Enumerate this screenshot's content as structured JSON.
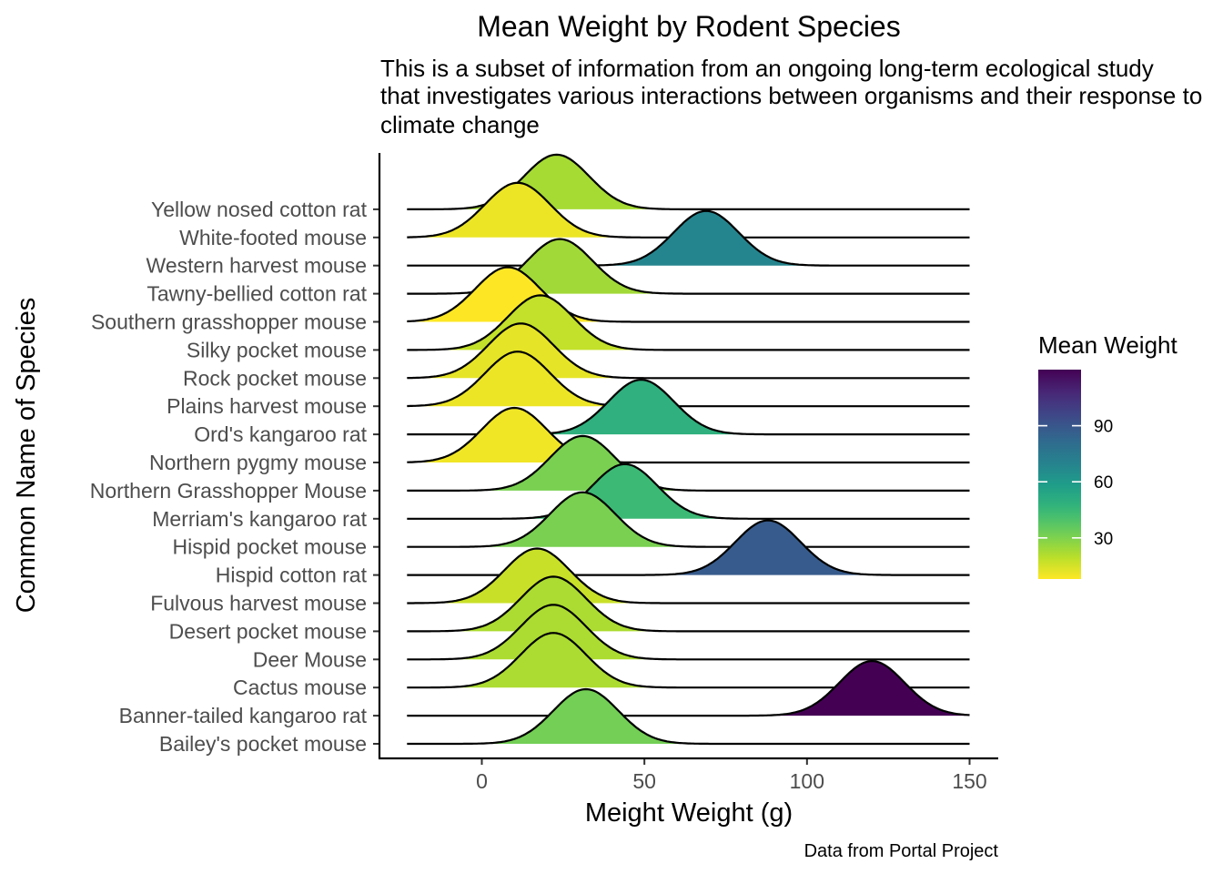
{
  "chart_data": {
    "type": "ridgeline",
    "title": "Mean Weight by Rodent Species",
    "subtitle_lines": [
      "This is a subset of information from an ongoing long-term ecological study",
      "that investigates various interactions between organisms and their response to",
      "climate change"
    ],
    "xlabel": "Meight Weight (g)",
    "ylabel": "Common Name of Species",
    "caption": "Data from Portal Project",
    "xlim": [
      -23,
      150
    ],
    "x_ticks": [
      0,
      50,
      100,
      150
    ],
    "grid": false,
    "legend": {
      "title": "Mean Weight",
      "position": "right",
      "range": [
        8,
        120
      ],
      "ticks": [
        30,
        60,
        90
      ],
      "palette": "viridis (reversed)"
    },
    "categories": [
      "Bailey's pocket mouse",
      "Banner-tailed kangaroo rat",
      "Cactus mouse",
      "Deer Mouse",
      "Desert pocket mouse",
      "Fulvous harvest mouse",
      "Hispid cotton rat",
      "Hispid pocket mouse",
      "Merriam's kangaroo rat",
      "Northern Grasshopper Mouse",
      "Northern pygmy mouse",
      "Ord's kangaroo rat",
      "Plains harvest mouse",
      "Rock pocket mouse",
      "Silky pocket mouse",
      "Southern grasshopper mouse",
      "Tawny-bellied cotton rat",
      "Western harvest mouse",
      "White-footed mouse",
      "Yellow nosed cotton rat"
    ],
    "values": [
      32,
      120,
      22,
      22,
      22,
      17,
      88,
      31,
      44,
      31,
      10,
      49,
      11,
      12,
      18,
      8,
      24,
      69,
      11,
      23
    ]
  }
}
